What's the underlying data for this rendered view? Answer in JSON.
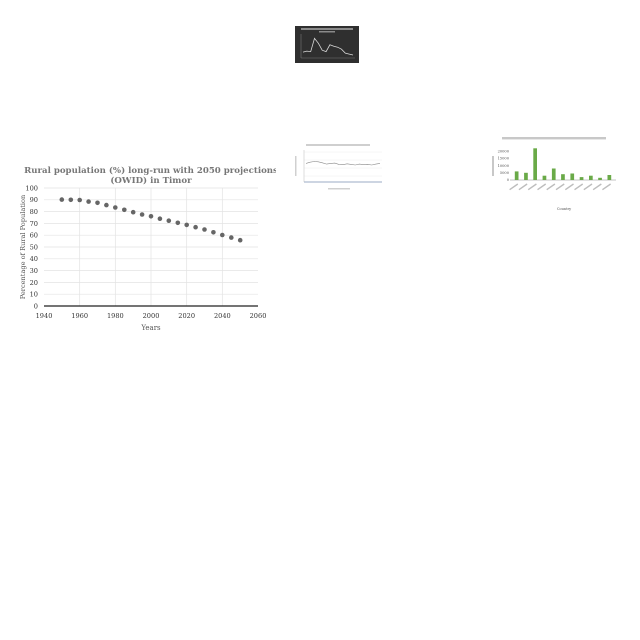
{
  "chart_data": [
    {
      "type": "line",
      "title": "",
      "series": [
        {
          "values": [
            10,
            12,
            11,
            38,
            28,
            14,
            11,
            25,
            22,
            20,
            16,
            8,
            6,
            4
          ]
        }
      ],
      "ylim": [
        0,
        45
      ]
    },
    {
      "type": "line",
      "title": "",
      "series": [
        {
          "values": [
            58,
            62,
            64,
            63,
            60,
            56,
            58,
            59,
            55,
            54,
            57,
            55,
            53,
            56,
            54,
            55,
            53,
            56,
            58
          ]
        }
      ],
      "ylim": [
        0,
        100
      ]
    },
    {
      "type": "bar",
      "title": "",
      "xlabel": "Country",
      "ylabel": "",
      "categories": [
        "c1",
        "c2",
        "c3",
        "c4",
        "c5",
        "c6",
        "c7",
        "c8",
        "c9",
        "c10",
        "c11"
      ],
      "values": [
        6000,
        5000,
        22000,
        3000,
        8000,
        4000,
        4500,
        2000,
        3000,
        1500,
        3500
      ],
      "ylim": [
        0,
        25000
      ],
      "yticks": [
        "0",
        "5000",
        "10000",
        "15000",
        "20000"
      ],
      "bar_color": "#6aaa48"
    },
    {
      "type": "scatter",
      "title": "Rural population (%) long-run with 2050 projections (OWID) in Timor",
      "xlabel": "Years",
      "ylabel": "Percentage of Rural Population",
      "xlim": [
        1940,
        2060
      ],
      "ylim": [
        0,
        100
      ],
      "xticks": [
        1940,
        1960,
        1980,
        2000,
        2020,
        2040,
        2060
      ],
      "yticks": [
        0,
        10,
        20,
        30,
        40,
        50,
        60,
        70,
        80,
        90,
        100
      ],
      "grid": true,
      "point_color": "#666666",
      "x": [
        1950,
        1955,
        1960,
        1965,
        1970,
        1975,
        1980,
        1985,
        1990,
        1995,
        2000,
        2005,
        2010,
        2015,
        2020,
        2025,
        2030,
        2035,
        2040,
        2045,
        2050
      ],
      "y": [
        90.2,
        90,
        89.8,
        88.5,
        87.5,
        85.5,
        83.5,
        81.5,
        79.5,
        77.5,
        76,
        74,
        72.3,
        70.5,
        68.7,
        66.8,
        64.8,
        62.5,
        60.2,
        58,
        55.8
      ]
    }
  ]
}
